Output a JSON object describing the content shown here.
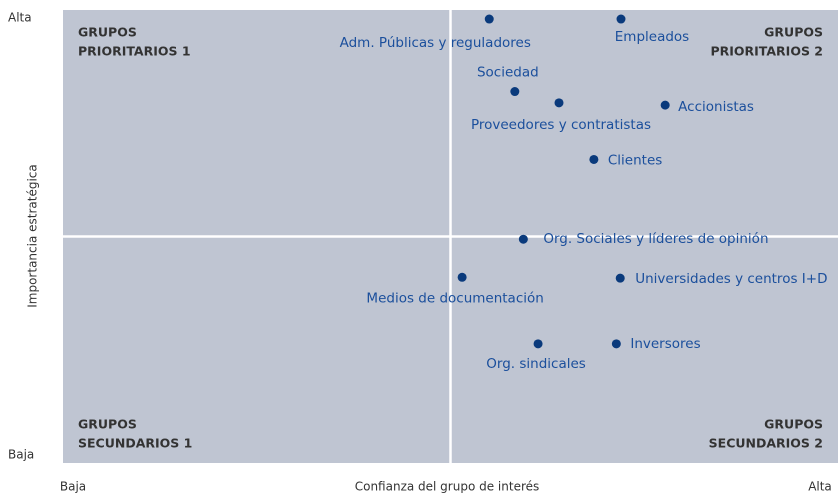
{
  "chart_data": {
    "type": "scatter",
    "xlabel": "Confianza del grupo de interés",
    "ylabel": "Importancia estratégica",
    "xlim": [
      0,
      100
    ],
    "ylim": [
      0,
      100
    ],
    "xticks": [
      {
        "value": 0,
        "label": "Baja"
      },
      {
        "value": 100,
        "label": "Alta"
      }
    ],
    "yticks": [
      {
        "value": 0,
        "label": "Baja"
      },
      {
        "value": 100,
        "label": "Alta"
      }
    ],
    "color": "#0a3a7c",
    "quadrants": [
      [
        "GRUPOS",
        "PRIORITARIOS 1"
      ],
      [
        "GRUPOS",
        "PRIORITARIOS 2"
      ],
      [
        "GRUPOS",
        "SECUNDARIOS 1"
      ],
      [
        "GRUPOS",
        "SECUNDARIOS 2"
      ]
    ],
    "points": [
      {
        "label": "Adm. Públicas y reguladores",
        "x": 55,
        "y": 98
      },
      {
        "label": "Empleados",
        "x": 72,
        "y": 98
      },
      {
        "label": "Sociedad",
        "x": 58.3,
        "y": 82
      },
      {
        "label": "Proveedores y contratistas",
        "x": 64,
        "y": 79.5
      },
      {
        "label": "Accionistas",
        "x": 77.7,
        "y": 79
      },
      {
        "label": "Clientes",
        "x": 68.5,
        "y": 67
      },
      {
        "label": "Org. Sociales y líderes de opinión",
        "x": 59.4,
        "y": 49.4
      },
      {
        "label": "Medios de documentación",
        "x": 51.5,
        "y": 41
      },
      {
        "label": "Universidades y centros I+D",
        "x": 71.9,
        "y": 40.8
      },
      {
        "label": "Inversores",
        "x": 71.4,
        "y": 26.3
      },
      {
        "label": "Org. sindicales",
        "x": 61.3,
        "y": 26.3
      }
    ]
  }
}
